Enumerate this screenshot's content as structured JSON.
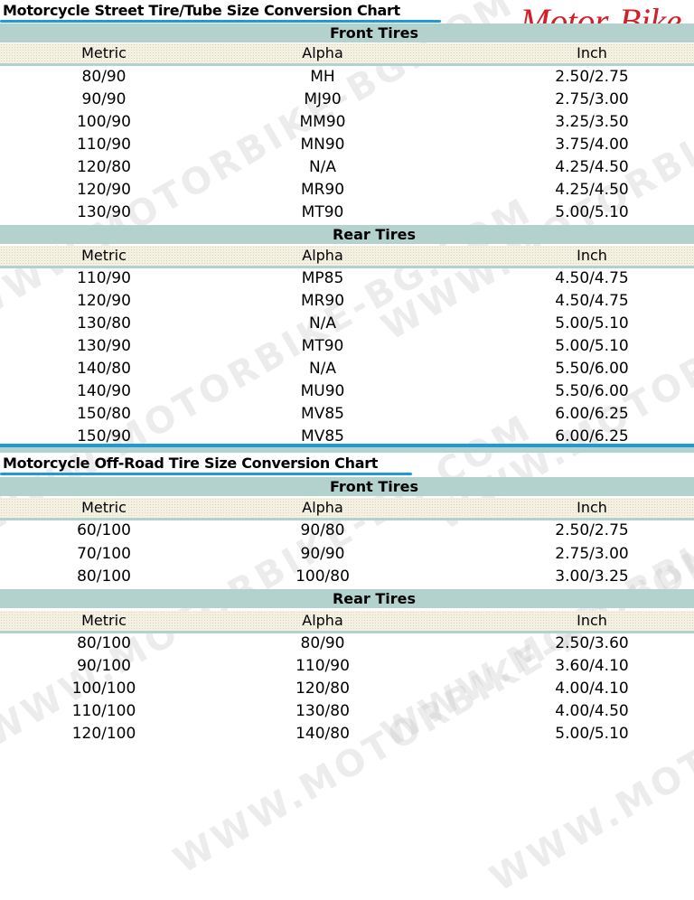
{
  "logo": "Motor-Bike",
  "watermark": "WWW.MOTORBIKE-BG.COM",
  "columns": {
    "metric": "Metric",
    "alpha": "Alpha",
    "inch": "Inch"
  },
  "street": {
    "title": "Motorcycle Street Tire/Tube Size Conversion Chart",
    "front": {
      "label": "Front Tires",
      "rows": [
        [
          "80/90",
          "MH",
          "2.50/2.75"
        ],
        [
          "90/90",
          "MJ90",
          "2.75/3.00"
        ],
        [
          "100/90",
          "MM90",
          "3.25/3.50"
        ],
        [
          "110/90",
          "MN90",
          "3.75/4.00"
        ],
        [
          "120/80",
          "N/A",
          "4.25/4.50"
        ],
        [
          "120/90",
          "MR90",
          "4.25/4.50"
        ],
        [
          "130/90",
          "MT90",
          "5.00/5.10"
        ]
      ]
    },
    "rear": {
      "label": "Rear Tires",
      "rows": [
        [
          "110/90",
          "MP85",
          "4.50/4.75"
        ],
        [
          "120/90",
          "MR90",
          "4.50/4.75"
        ],
        [
          "130/80",
          "N/A",
          "5.00/5.10"
        ],
        [
          "130/90",
          "MT90",
          "5.00/5.10"
        ],
        [
          "140/80",
          "N/A",
          "5.50/6.00"
        ],
        [
          "140/90",
          "MU90",
          "5.50/6.00"
        ],
        [
          "150/80",
          "MV85",
          "6.00/6.25"
        ],
        [
          "150/90",
          "MV85",
          "6.00/6.25"
        ]
      ]
    }
  },
  "offroad": {
    "title": "Motorcycle Off-Road Tire Size Conversion Chart",
    "front": {
      "label": "Front Tires",
      "rows": [
        [
          "60/100",
          "90/80",
          "2.50/2.75"
        ],
        [
          "70/100",
          "90/90",
          "2.75/3.00"
        ],
        [
          "80/100",
          "100/80",
          "3.00/3.25"
        ]
      ]
    },
    "rear": {
      "label": "Rear Tires",
      "rows": [
        [
          "80/100",
          "80/90",
          "2.50/3.60"
        ],
        [
          "90/100",
          "110/90",
          "3.60/4.10"
        ],
        [
          "100/100",
          "120/80",
          "4.00/4.10"
        ],
        [
          "110/100",
          "130/80",
          "4.00/4.50"
        ],
        [
          "120/100",
          "140/80",
          "5.00/5.10"
        ]
      ]
    }
  },
  "colors": {
    "accent": "#1e9ad6",
    "band": "#b3d2cd",
    "logo": "#d0202a"
  }
}
